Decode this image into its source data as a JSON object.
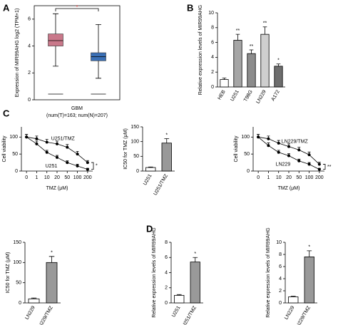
{
  "chart_data": [
    {
      "type": "box",
      "panel": "A",
      "ylabel": "Expression of MIR99AHG log2 (TPM+1)",
      "category": "GBM",
      "subtitle": "(num(T)=163; num(N)=207)",
      "annotation": "*",
      "ylim": [
        0,
        7
      ],
      "yticks": [
        0,
        2,
        4,
        6
      ],
      "boxes": [
        {
          "color": "#c9788a",
          "whisker_low": 2.5,
          "q1": 4.0,
          "median": 4.4,
          "q3": 4.9,
          "whisker_high": 6.4
        },
        {
          "color": "#3a6fb5",
          "whisker_low": 1.6,
          "q1": 2.9,
          "median": 3.2,
          "q3": 3.5,
          "whisker_high": 5.6
        }
      ]
    },
    {
      "type": "bar",
      "panel": "B",
      "ylabel": "Relative expression levels of MIR99AHG",
      "categories": [
        "HEB",
        "U251",
        "T98G",
        "LN229",
        "A172"
      ],
      "values": [
        1,
        6.3,
        4.5,
        7.1,
        2.8
      ],
      "errors": [
        0.2,
        0.8,
        0.5,
        1.0,
        0.3
      ],
      "sig_labels": [
        null,
        "**",
        "**",
        "**",
        "*"
      ],
      "colors": [
        "#ffffff",
        "#a6a6a6",
        "#8c8c8c",
        "#cfcfcf",
        "#6e6e6e"
      ],
      "ylim": [
        0,
        10
      ],
      "yticks": [
        0,
        2,
        4,
        6,
        8,
        10
      ]
    },
    {
      "type": "line",
      "panel": "C",
      "ylabel": "Cell viability",
      "xlabel": "TMZ (μM)",
      "annotation": "*",
      "categories": [
        "0",
        "1",
        "10",
        "20",
        "50",
        "100",
        "200"
      ],
      "series": [
        {
          "name": "U251/TMZ",
          "color": "#000000",
          "values": [
            100,
            95,
            85,
            80,
            70,
            50,
            25
          ],
          "errors": [
            8,
            8,
            8,
            8,
            8,
            8,
            6
          ]
        },
        {
          "name": "U251",
          "color": "#000000",
          "values": [
            100,
            80,
            55,
            40,
            25,
            15,
            5
          ],
          "errors": [
            8,
            8,
            6,
            6,
            5,
            5,
            3
          ]
        }
      ],
      "ylim": [
        0,
        130
      ],
      "yticks": [
        0,
        50,
        100
      ]
    },
    {
      "type": "bar",
      "ylabel": "IC50 for TMZ (μM)",
      "categories": [
        "U251",
        "U251/TMZ"
      ],
      "values": [
        12,
        95
      ],
      "errors": [
        2,
        15
      ],
      "sig_labels": [
        null,
        "*"
      ],
      "colors": [
        "#ffffff",
        "#999999"
      ],
      "ylim": [
        0,
        150
      ],
      "yticks": [
        0,
        50,
        100,
        150
      ]
    },
    {
      "type": "line",
      "ylabel": "Cell viability",
      "xlabel": "TMZ (μM)",
      "annotation": "**",
      "categories": [
        "0",
        "1",
        "10",
        "20",
        "50",
        "100",
        "200"
      ],
      "series": [
        {
          "name": "LN229/TMZ",
          "color": "#000000",
          "values": [
            100,
            95,
            82,
            72,
            62,
            48,
            20
          ],
          "errors": [
            8,
            8,
            8,
            8,
            8,
            8,
            6
          ]
        },
        {
          "name": "LN229",
          "color": "#000000",
          "values": [
            100,
            75,
            55,
            45,
            30,
            20,
            5
          ],
          "errors": [
            8,
            8,
            6,
            6,
            5,
            5,
            3
          ]
        }
      ],
      "ylim": [
        0,
        130
      ],
      "yticks": [
        0,
        50,
        100
      ]
    },
    {
      "type": "bar",
      "ylabel": "IC50 for TMZ (μM)",
      "categories": [
        "LN229",
        "LN229/TMZ"
      ],
      "values": [
        10,
        100
      ],
      "errors": [
        2,
        15
      ],
      "sig_labels": [
        null,
        "*"
      ],
      "colors": [
        "#ffffff",
        "#999999"
      ],
      "ylim": [
        0,
        150
      ],
      "yticks": [
        0,
        50,
        100,
        150
      ]
    },
    {
      "type": "bar",
      "panel": "D",
      "ylabel": "Relative expression levels of MIR99AHG",
      "categories": [
        "U251",
        "U251/TMZ"
      ],
      "values": [
        1,
        5.4
      ],
      "errors": [
        0.1,
        0.6
      ],
      "sig_labels": [
        null,
        "*"
      ],
      "colors": [
        "#ffffff",
        "#999999"
      ],
      "ylim": [
        0,
        8
      ],
      "yticks": [
        0,
        2,
        4,
        6,
        8
      ]
    },
    {
      "type": "bar",
      "ylabel": "Relative expression levels of MIR99AHG",
      "categories": [
        "LN229",
        "LN229/TMZ"
      ],
      "values": [
        1,
        7.6
      ],
      "errors": [
        0.1,
        1.0
      ],
      "sig_labels": [
        null,
        "*"
      ],
      "colors": [
        "#ffffff",
        "#999999"
      ],
      "ylim": [
        0,
        10
      ],
      "yticks": [
        0,
        2,
        4,
        6,
        8,
        10
      ]
    }
  ]
}
